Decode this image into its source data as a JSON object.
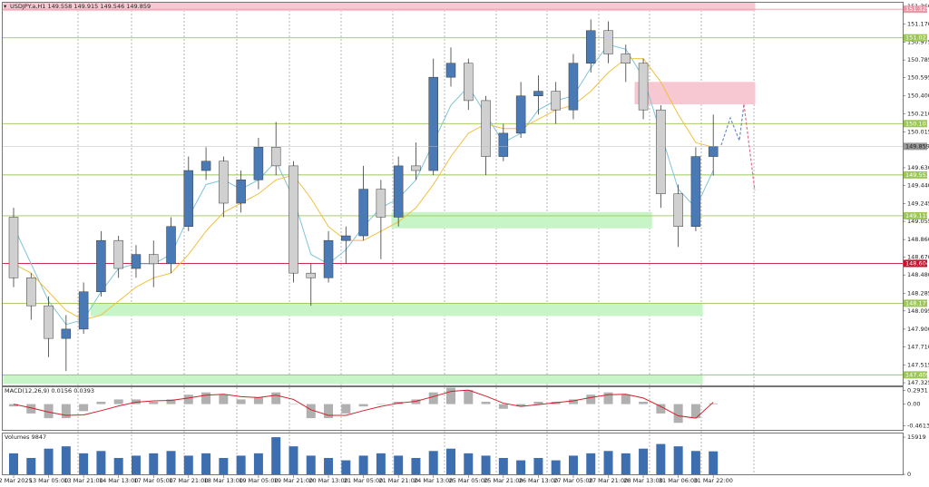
{
  "chart_data": [
    {
      "type": "candlestick",
      "title": "USDJPY.a,H1  149.558 149.915 149.546 149.859",
      "categories": [
        "12 Mar 2025",
        null,
        "13 Mar 05:00",
        null,
        "13 Mar 21:00",
        null,
        "14 Mar 13:00",
        null,
        "17 Mar 05:00",
        null,
        "17 Mar 21:00",
        null,
        "18 Mar 13:00",
        null,
        "19 Mar 05:00",
        null,
        "19 Mar 21:00",
        null,
        "20 Mar 13:00",
        null,
        "21 Mar 05:00",
        null,
        "21 Mar 21:00",
        null,
        "24 Mar 13:00",
        null,
        "25 Mar 05:00",
        null,
        "25 Mar 21:00",
        null,
        "26 Mar 13:00",
        null,
        "27 Mar 05:00",
        null,
        "27 Mar 21:00",
        null,
        "28 Mar 13:00",
        null,
        "31 Mar 06:00",
        null,
        "31 Mar 22:00"
      ],
      "open": [
        149.1,
        148.45,
        148.15,
        147.8,
        147.9,
        148.3,
        148.85,
        148.55,
        148.7,
        148.6,
        149.0,
        149.6,
        149.7,
        149.25,
        149.5,
        149.85,
        149.65,
        148.5,
        148.45,
        148.85,
        148.9,
        149.4,
        149.1,
        149.65,
        149.6,
        150.6,
        150.75,
        150.35,
        149.75,
        150.0,
        150.4,
        150.45,
        150.25,
        150.75,
        151.1,
        150.85,
        150.75,
        150.25,
        149.35,
        149.0,
        149.75
      ],
      "high": [
        149.2,
        148.5,
        148.25,
        148.05,
        148.4,
        148.95,
        148.9,
        148.8,
        148.85,
        149.1,
        149.75,
        149.85,
        149.75,
        149.6,
        149.95,
        150.12,
        149.7,
        148.6,
        148.95,
        149.0,
        149.65,
        149.5,
        149.75,
        149.9,
        150.8,
        150.92,
        150.8,
        150.4,
        150.1,
        150.55,
        150.62,
        150.55,
        150.85,
        151.22,
        151.2,
        150.95,
        150.8,
        150.3,
        149.45,
        149.85,
        150.2
      ],
      "low": [
        148.35,
        148.0,
        147.6,
        147.45,
        147.85,
        148.25,
        148.45,
        148.45,
        148.35,
        148.5,
        148.95,
        149.5,
        149.1,
        149.15,
        149.4,
        149.55,
        148.4,
        148.15,
        148.4,
        148.6,
        148.85,
        148.65,
        149.0,
        149.5,
        149.55,
        150.5,
        150.25,
        149.55,
        149.7,
        149.95,
        150.2,
        150.1,
        150.15,
        150.65,
        150.75,
        150.55,
        150.15,
        149.2,
        148.78,
        148.95,
        149.546
      ],
      "close": [
        148.45,
        148.15,
        147.8,
        147.9,
        148.3,
        148.85,
        148.55,
        148.7,
        148.6,
        149.0,
        149.6,
        149.7,
        149.25,
        149.5,
        149.85,
        149.65,
        148.5,
        148.45,
        148.85,
        148.9,
        149.4,
        149.1,
        149.65,
        149.6,
        150.6,
        150.75,
        150.35,
        149.75,
        150.0,
        150.4,
        150.45,
        150.25,
        150.75,
        151.1,
        150.85,
        150.75,
        150.25,
        149.35,
        149.0,
        149.75,
        149.859
      ],
      "up_color": "#4a7ab5",
      "down_color": "#d0d0d0",
      "wick_color": "#3a3a3a",
      "lines": [
        {
          "color": "#7fc4d8",
          "values": [
            149.0,
            148.6,
            148.2,
            147.95,
            148.0,
            148.3,
            148.55,
            148.6,
            148.6,
            148.7,
            149.1,
            149.45,
            149.5,
            149.4,
            149.5,
            149.7,
            149.3,
            148.7,
            148.6,
            148.75,
            149.0,
            149.2,
            149.3,
            149.5,
            149.9,
            150.3,
            150.5,
            150.2,
            149.9,
            150.0,
            150.25,
            150.35,
            150.4,
            150.7,
            150.95,
            150.9,
            150.6,
            150.0,
            149.4,
            149.2,
            149.6
          ]
        },
        {
          "color": "#f0c040",
          "values": [
            148.6,
            148.5,
            148.3,
            148.1,
            148.0,
            148.05,
            148.2,
            148.35,
            148.45,
            148.5,
            148.7,
            148.95,
            149.15,
            149.25,
            149.35,
            149.5,
            149.55,
            149.3,
            149.0,
            148.85,
            148.85,
            148.95,
            149.05,
            149.2,
            149.45,
            149.75,
            150.0,
            150.1,
            150.05,
            150.05,
            150.15,
            150.25,
            150.3,
            150.45,
            150.65,
            150.8,
            150.8,
            150.55,
            150.2,
            149.9,
            149.85
          ]
        }
      ],
      "zones": [
        {
          "low": 151.31,
          "high": 151.399,
          "x_range": [
            -0.6,
            42.4
          ],
          "color": "#f8c8d2"
        },
        {
          "low": 150.31,
          "high": 150.55,
          "x_range": [
            35.5,
            42.4
          ],
          "color": "#f8c8d2"
        },
        {
          "low": 148.98,
          "high": 149.155,
          "x_range": [
            21.6,
            36.5
          ],
          "color": "#c8f5c8"
        },
        {
          "low": 148.04,
          "high": 148.177,
          "x_range": [
            4.4,
            39.4
          ],
          "color": "#c8f5c8"
        },
        {
          "low": 147.31,
          "high": 147.409,
          "x_range": [
            -0.6,
            39.4
          ],
          "color": "#c8f5c8"
        }
      ],
      "levels": [
        {
          "value": 151.329,
          "color": "#e89aa8"
        },
        {
          "value": 151.023,
          "color": "#9cc65a"
        },
        {
          "value": 150.103,
          "color": "#9cc65a"
        },
        {
          "value": 149.553,
          "color": "#9cc65a"
        },
        {
          "value": 149.115,
          "color": "#9cc65a"
        },
        {
          "value": 148.604,
          "color": "#c8102e"
        },
        {
          "value": 148.177,
          "color": "#9cc65a"
        },
        {
          "value": 147.409,
          "color": "#9cc65a"
        }
      ],
      "current_price": 149.859,
      "ylim": [
        147.296,
        151.399
      ],
      "yticks": [
        {
          "value": 151.36,
          "label": "151.360"
        },
        {
          "value": 151.17,
          "label": "151.170"
        },
        150.975,
        150.785,
        150.595,
        {
          "value": 150.4,
          "label": "150.400"
        },
        {
          "value": 150.21,
          "label": "150.210"
        },
        150.015,
        {
          "value": 149.63,
          "label": "149.630"
        },
        {
          "value": 149.44,
          "label": "149.440"
        },
        149.245,
        149.055,
        {
          "value": 148.86,
          "label": "148.860"
        },
        {
          "value": 148.67,
          "label": "148.670"
        },
        {
          "value": 148.48,
          "label": "148.480"
        },
        148.285,
        148.095,
        {
          "value": 147.9,
          "label": "147.900"
        },
        {
          "value": 147.71,
          "label": "147.710"
        },
        147.515,
        147.325
      ]
    },
    {
      "type": "macd",
      "title": "MACD(12,26,9) 0.0156 0.0393",
      "histogram": [
        -0.05,
        -0.2,
        -0.3,
        -0.3,
        -0.15,
        0.05,
        0.1,
        0.1,
        0.05,
        0.1,
        0.2,
        0.25,
        0.2,
        0.1,
        0.15,
        0.25,
        0.0,
        -0.3,
        -0.3,
        -0.2,
        -0.05,
        0.0,
        0.05,
        0.1,
        0.25,
        0.35,
        0.3,
        0.05,
        -0.1,
        -0.05,
        0.05,
        0.05,
        0.1,
        0.2,
        0.25,
        0.2,
        0.05,
        -0.2,
        -0.4,
        -0.3,
        0.0156
      ],
      "signal": [
        0.0,
        -0.08,
        -0.17,
        -0.24,
        -0.23,
        -0.14,
        -0.04,
        0.04,
        0.07,
        0.08,
        0.13,
        0.19,
        0.21,
        0.16,
        0.14,
        0.19,
        0.1,
        -0.12,
        -0.24,
        -0.24,
        -0.14,
        -0.05,
        0.02,
        0.06,
        0.16,
        0.27,
        0.3,
        0.17,
        0.02,
        -0.05,
        -0.01,
        0.03,
        0.07,
        0.14,
        0.2,
        0.21,
        0.13,
        -0.05,
        -0.25,
        -0.3,
        0.0393
      ],
      "color": "#b0b0b0",
      "signal_color": "#d0202a",
      "ylim": [
        -0.55,
        0.36
      ],
      "yticks": [
        0.2931,
        {
          "value": 0,
          "label": "0.00"
        },
        -0.4613
      ]
    },
    {
      "type": "volume",
      "title": "Volumes 9847",
      "values": [
        9000,
        7000,
        11000,
        12000,
        9000,
        10000,
        7000,
        8000,
        9000,
        10000,
        8000,
        9000,
        7000,
        8000,
        9000,
        15919,
        12000,
        8000,
        7000,
        6000,
        8000,
        9000,
        8000,
        7000,
        10000,
        11000,
        9000,
        8000,
        7000,
        6000,
        7000,
        6000,
        8000,
        9000,
        10000,
        9000,
        11000,
        13000,
        12000,
        10000,
        9847
      ],
      "color": "#3d6fb0",
      "ylim": [
        0,
        17500
      ],
      "yticks": [
        15919,
        0
      ]
    }
  ]
}
